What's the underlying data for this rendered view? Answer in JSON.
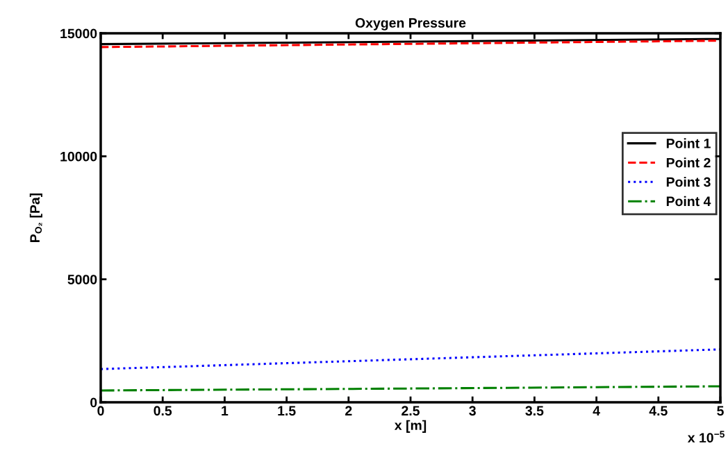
{
  "chart_data": {
    "type": "line",
    "title": "Oxygen Pressure",
    "xlabel": "x [m]",
    "ylabel": "P$_{O₂}$ [Pa]",
    "x": [
      0,
      2.5,
      5
    ],
    "series": [
      {
        "name": "Point 1",
        "color": "#000000",
        "line_style": "solid",
        "values": [
          14560,
          14660,
          14770
        ]
      },
      {
        "name": "Point 2",
        "color": "#ff0000",
        "line_style": "dashed",
        "values": [
          14440,
          14570,
          14700
        ]
      },
      {
        "name": "Point 3",
        "color": "#0000ff",
        "line_style": "dotted",
        "values": [
          1350,
          1750,
          2150
        ]
      },
      {
        "name": "Point 4",
        "color": "#008000",
        "line_style": "dashdot",
        "values": [
          480,
          560,
          650
        ]
      }
    ],
    "xlim": [
      0,
      5
    ],
    "xticks": [
      0,
      0.5,
      1,
      1.5,
      2,
      2.5,
      3,
      3.5,
      4,
      4.5,
      5
    ],
    "ylim": [
      0,
      15000
    ],
    "yticks": [
      0,
      5000,
      10000,
      15000
    ],
    "annotations": [
      "x 10$^{−5}$"
    ],
    "legend": "right",
    "grid": false
  }
}
